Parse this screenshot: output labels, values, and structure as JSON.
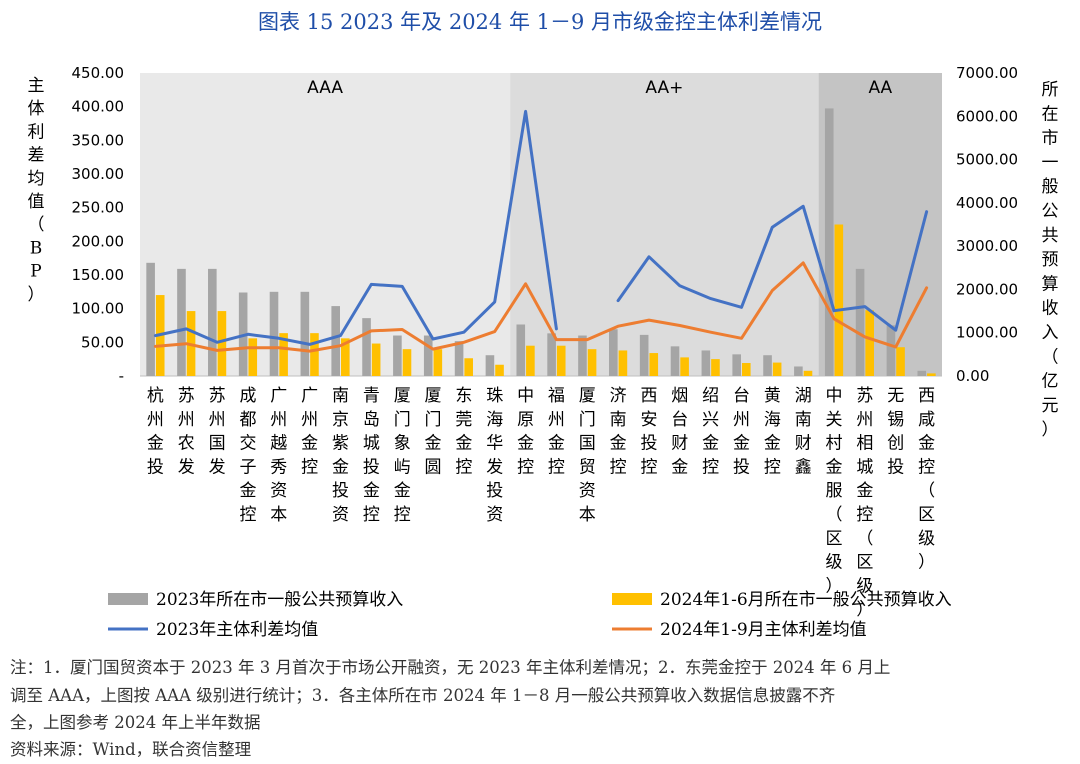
{
  "title": "图表 15  2023 年及 2024 年 1－9 月市级金控主体利差情况",
  "chart_data": {
    "type": "bar",
    "categories": [
      "杭州金投",
      "苏州农发",
      "苏州国发",
      "成都交子金控",
      "广州越秀资本",
      "广州金控",
      "南京紫金投资",
      "青岛城投金控",
      "厦门象屿金控",
      "厦门金圆",
      "东莞金控",
      "珠海华发投资",
      "中原金控",
      "福州金控",
      "厦门国贸资本",
      "济南金控",
      "西安投控",
      "烟台财金",
      "绍兴金控",
      "台州金投",
      "黄海金控",
      "湖南财鑫",
      "中关村金服（区级）",
      "苏州相城金控（区级）",
      "无锡创投",
      "西咸金控（区级）"
    ],
    "ylabel_left": "主体利差均值（BP）",
    "ylabel_right": "所在市一般公共预算收入（亿元）",
    "left_axis": {
      "min": 0,
      "max": 450,
      "step": 50,
      "ticks": [
        "-",
        "50.00",
        "100.00",
        "150.00",
        "200.00",
        "250.00",
        "300.00",
        "350.00",
        "400.00",
        "450.00"
      ]
    },
    "right_axis": {
      "min": 0,
      "max": 7000,
      "step": 1000,
      "ticks": [
        "0.00",
        "1000.00",
        "2000.00",
        "3000.00",
        "4000.00",
        "5000.00",
        "6000.00",
        "7000.00"
      ]
    },
    "bands": [
      {
        "label": "AAA",
        "from": 0,
        "to": 11,
        "color": "#e9e9e9"
      },
      {
        "label": "AA+",
        "from": 12,
        "to": 21,
        "color": "#dcdcdc"
      },
      {
        "label": "AA",
        "from": 22,
        "to": 25,
        "color": "#c4c4c4"
      }
    ],
    "series": [
      {
        "name": "2023年所在市一般公共预算收入",
        "type": "bar",
        "axis": "right",
        "color": "#a5a5a5",
        "values": [
          2615,
          2475,
          2475,
          1929,
          1945,
          1945,
          1615,
          1337,
          935,
          935,
          805,
          480,
          1190,
          985,
          935,
          1080,
          950,
          685,
          590,
          500,
          480,
          220,
          6181,
          2475,
          1170,
          120
        ]
      },
      {
        "name": "2024年1-6月所在市一般公共预算收入",
        "type": "bar",
        "axis": "right",
        "color": "#ffc000",
        "values": [
          1870,
          1500,
          1500,
          870,
          990,
          990,
          870,
          750,
          620,
          620,
          410,
          260,
          700,
          700,
          620,
          590,
          530,
          430,
          390,
          300,
          310,
          120,
          3500,
          1520,
          665,
          60
        ]
      },
      {
        "name": "2023年主体利差均值",
        "type": "line",
        "axis": "left",
        "color": "#4472c4",
        "values": [
          60,
          70,
          50,
          62,
          56,
          47,
          60,
          136,
          133,
          55,
          65,
          110,
          393,
          70,
          null,
          112,
          177,
          134,
          115,
          102,
          221,
          252,
          97,
          103,
          68,
          244
        ]
      },
      {
        "name": "2024年1-9月主体利差均值",
        "type": "line",
        "axis": "left",
        "color": "#ed7d31",
        "values": [
          44,
          48,
          38,
          42,
          42,
          37,
          45,
          67,
          69,
          40,
          50,
          66,
          137,
          54,
          54,
          74,
          83,
          75,
          65,
          56,
          127,
          168,
          85,
          58,
          43,
          131
        ]
      }
    ]
  },
  "notes": [
    "注：1．厦门国贸资本于 2023 年 3 月首次于市场公开融资，无 2023 年主体利差情况；2．东莞金控于 2024 年 6 月上",
    "调至 AAA，上图按 AAA 级别进行统计；3．各主体所在市 2024 年 1－8 月一般公共预算收入数据信息披露不齐",
    "全，上图参考 2024 年上半年数据",
    "资料来源：Wind，联合资信整理"
  ]
}
